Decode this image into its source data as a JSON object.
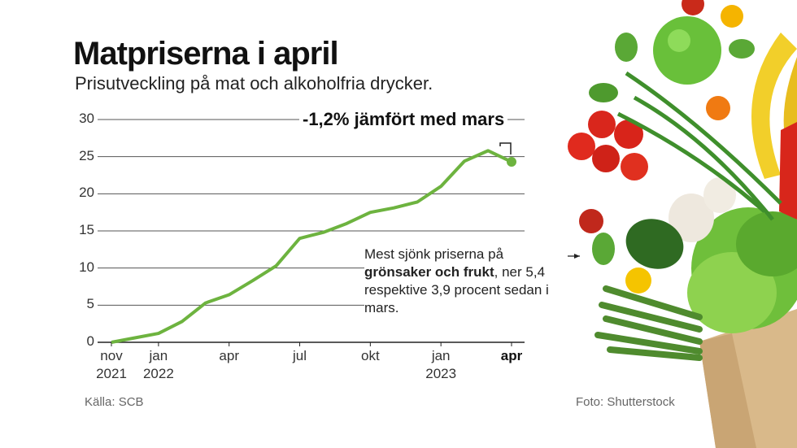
{
  "chart_data": {
    "type": "line",
    "title": "Matpriserna i april",
    "subtitle": "Prisutveckling på mat och alkoholfria drycker.",
    "annotation": "-1,2% jämfört med mars",
    "note": [
      "Mest sjönk priserna på ",
      "grönsaker och frukt",
      ", ner 5,4 respektive 3,9 procent sedan i mars."
    ],
    "source": "Källa: SCB",
    "credit": "Foto: Shutterstock",
    "categories": [
      "nov 2021",
      null,
      "jan 2022",
      null,
      null,
      "apr",
      null,
      null,
      "jul",
      null,
      null,
      "okt",
      null,
      null,
      "jan 2023",
      null,
      null,
      "apr"
    ],
    "values": [
      0,
      0.6,
      1.2,
      2.8,
      5.3,
      6.4,
      8.3,
      10.3,
      14,
      14.8,
      16,
      17.5,
      18.1,
      18.9,
      21,
      24.4,
      25.8,
      24.3
    ],
    "color": "#6db33f",
    "ylim": [
      0,
      30
    ],
    "yticks": [
      0,
      5,
      10,
      15,
      20,
      25,
      30
    ],
    "grid": true
  }
}
